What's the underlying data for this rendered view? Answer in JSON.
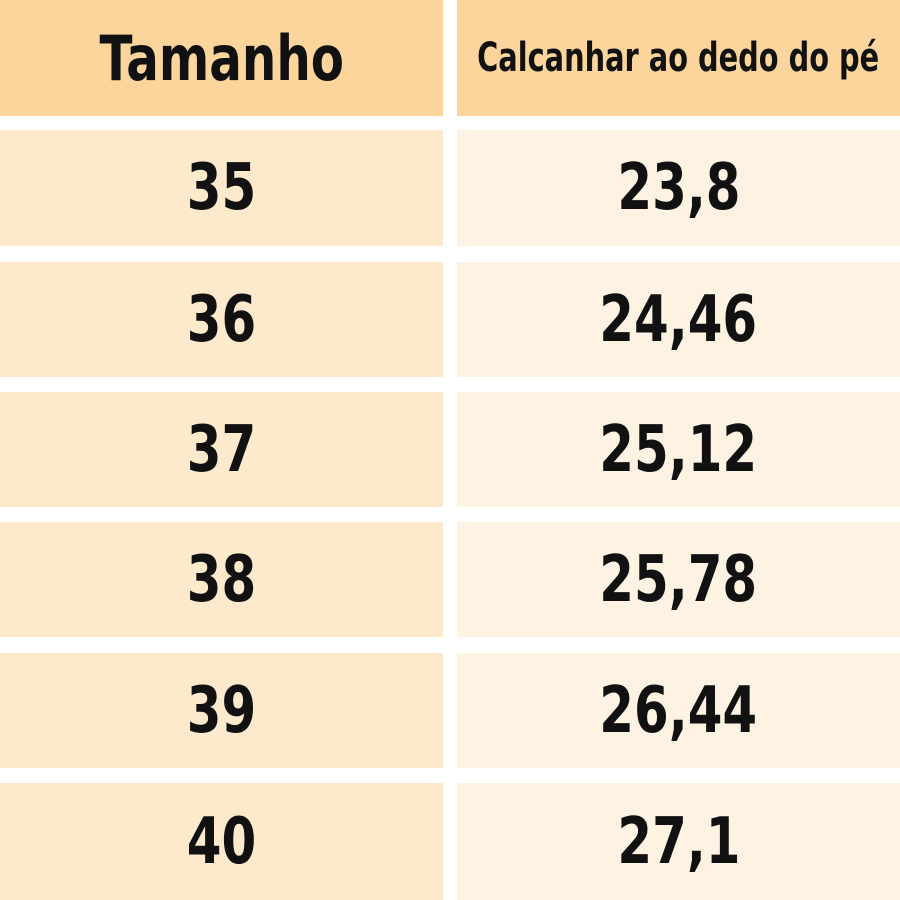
{
  "chart_data": {
    "type": "table",
    "columns": [
      "Tamanho",
      "Calcanhar ao dedo do pé"
    ],
    "rows": [
      [
        "35",
        "23,8"
      ],
      [
        "36",
        "24,46"
      ],
      [
        "37",
        "25,12"
      ],
      [
        "38",
        "25,78"
      ],
      [
        "39",
        "26,44"
      ],
      [
        "40",
        "27,1"
      ]
    ]
  },
  "colors": {
    "header": "#fbd59c",
    "left_cell": "#fde9cc",
    "right_cell": "#fef3e3"
  }
}
